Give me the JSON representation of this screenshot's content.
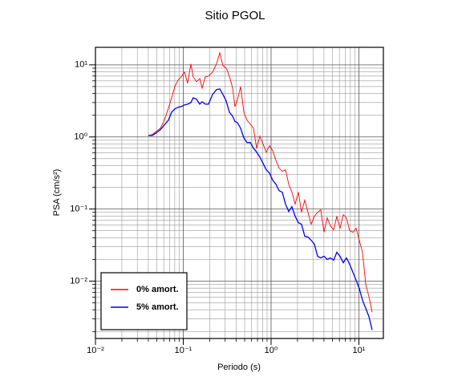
{
  "chart_data": {
    "type": "line",
    "title": "Sitio PGOL",
    "x_label": "Periodo (s)",
    "y_label": "PSA (cm/s²)",
    "log_x": true,
    "log_y": true,
    "grid": true,
    "minor_grid": true,
    "legend_loc": "lower left",
    "xlim": [
      0.01,
      19
    ],
    "ylim": [
      0.0016,
      17.5
    ],
    "xticks": [
      {
        "value": 0.01,
        "label": "10⁻²"
      },
      {
        "value": 0.1,
        "label": "10⁻¹"
      },
      {
        "value": 1,
        "label": "10⁰"
      },
      {
        "value": 10,
        "label": "10¹"
      }
    ],
    "yticks": [
      {
        "value": 0.01,
        "label": "10⁻²"
      },
      {
        "value": 0.1,
        "label": "10⁻¹"
      },
      {
        "value": 1,
        "label": "10⁰"
      },
      {
        "value": 10,
        "label": "10¹"
      }
    ],
    "x": [
      0.04,
      0.0445,
      0.0494,
      0.0549,
      0.061,
      0.0678,
      0.0738,
      0.0802,
      0.0873,
      0.0949,
      0.1033,
      0.1122,
      0.122,
      0.13,
      0.1415,
      0.154,
      0.164,
      0.178,
      0.194,
      0.2155,
      0.239,
      0.2605,
      0.283,
      0.308,
      0.335,
      0.365,
      0.388,
      0.413,
      0.45,
      0.489,
      0.532,
      0.579,
      0.63,
      0.685,
      0.745,
      0.811,
      0.881,
      0.959,
      1.043,
      1.135,
      1.234,
      1.342,
      1.46,
      1.588,
      1.727,
      1.879,
      2.044,
      2.223,
      2.419,
      2.631,
      2.862,
      3.113,
      3.386,
      3.683,
      4.006,
      4.358,
      4.741,
      5.157,
      5.61,
      6.1,
      6.64,
      7.22,
      7.85,
      8.54,
      9.29,
      10.1,
      11.0,
      11.96,
      13.0,
      14.15
    ],
    "series": [
      {
        "name": "0% amort.",
        "color": "#ff0000",
        "values": [
          1.05,
          1.08,
          1.2,
          1.32,
          1.71,
          2.51,
          3.5,
          5.01,
          6.15,
          6.81,
          7.94,
          5.55,
          10.3,
          6.81,
          5.84,
          6.47,
          4.76,
          6.81,
          6.99,
          7.94,
          10.3,
          14.7,
          9.75,
          9.03,
          6.99,
          4.76,
          2.64,
          3.24,
          5.01,
          2.21,
          1.71,
          1.51,
          1.32,
          0.699,
          1.03,
          0.794,
          0.615,
          0.755,
          0.647,
          0.476,
          0.369,
          0.333,
          0.35,
          0.221,
          0.171,
          0.117,
          0.171,
          0.0902,
          0.133,
          0.0902,
          0.0615,
          0.0794,
          0.0902,
          0.0975,
          0.0476,
          0.0755,
          0.0585,
          0.0514,
          0.0794,
          0.0541,
          0.0836,
          0.0755,
          0.0501,
          0.0476,
          0.0541,
          0.0369,
          0.0251,
          0.00903,
          0.00615,
          0.00369
        ]
      },
      {
        "name": "5% amort.",
        "color": "#0000ff",
        "values": [
          1.05,
          1.05,
          1.14,
          1.26,
          1.47,
          1.71,
          2.21,
          2.45,
          2.58,
          2.64,
          2.78,
          2.85,
          3.0,
          3.5,
          3.33,
          2.85,
          3.08,
          2.85,
          2.85,
          3.88,
          4.53,
          4.64,
          3.88,
          3.16,
          2.21,
          1.94,
          1.63,
          1.58,
          1.32,
          0.975,
          0.836,
          0.836,
          0.699,
          0.615,
          0.527,
          0.43,
          0.35,
          0.316,
          0.251,
          0.221,
          0.18,
          0.171,
          0.117,
          0.0926,
          0.108,
          0.0794,
          0.0647,
          0.0615,
          0.0419,
          0.0409,
          0.0369,
          0.0325,
          0.0221,
          0.021,
          0.0221,
          0.02,
          0.021,
          0.0195,
          0.0251,
          0.0221,
          0.018,
          0.021,
          0.0171,
          0.0133,
          0.0103,
          0.00794,
          0.00541,
          0.00419,
          0.00324,
          0.0021
        ]
      }
    ]
  }
}
